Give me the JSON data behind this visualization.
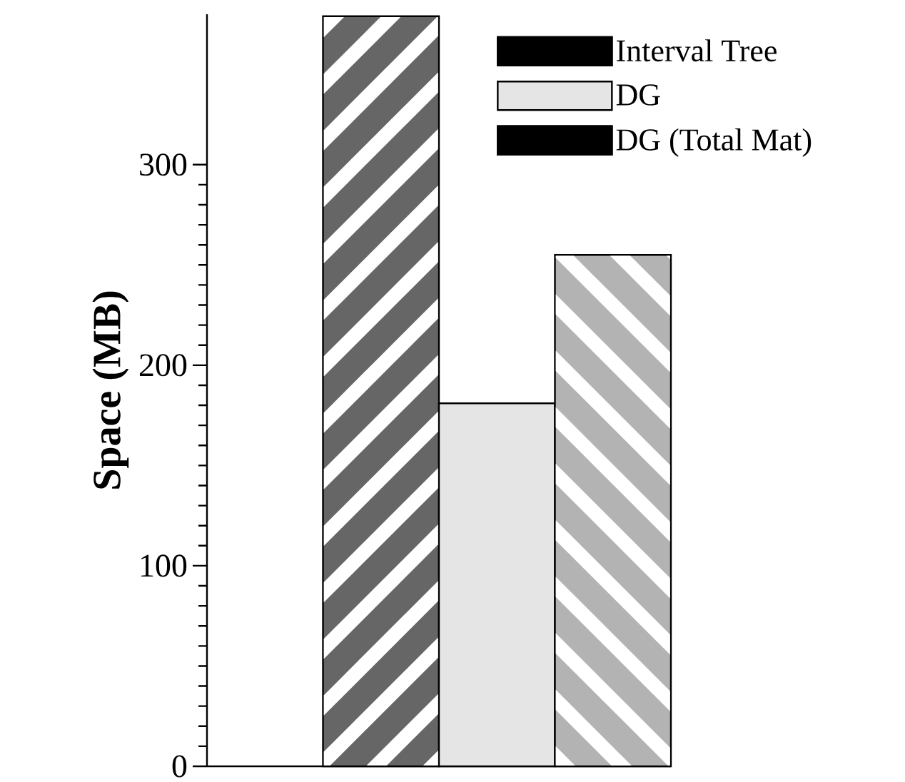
{
  "chart_data": {
    "type": "bar",
    "ylabel": "Space (MB)",
    "categories": [
      null
    ],
    "series": [
      {
        "name": "Interval Tree",
        "color": "#666666",
        "values": [
          374
        ]
      },
      {
        "name": "DG",
        "color": "#e5e5e5",
        "values": [
          181
        ]
      },
      {
        "name": "DG (Total Mat)",
        "color": "#b3b3b3",
        "values": [
          255
        ]
      }
    ],
    "ylim": [
      0,
      375
    ],
    "yticks": [
      0,
      100,
      200,
      300
    ],
    "legend": "top right",
    "tick_labels": "y"
  }
}
